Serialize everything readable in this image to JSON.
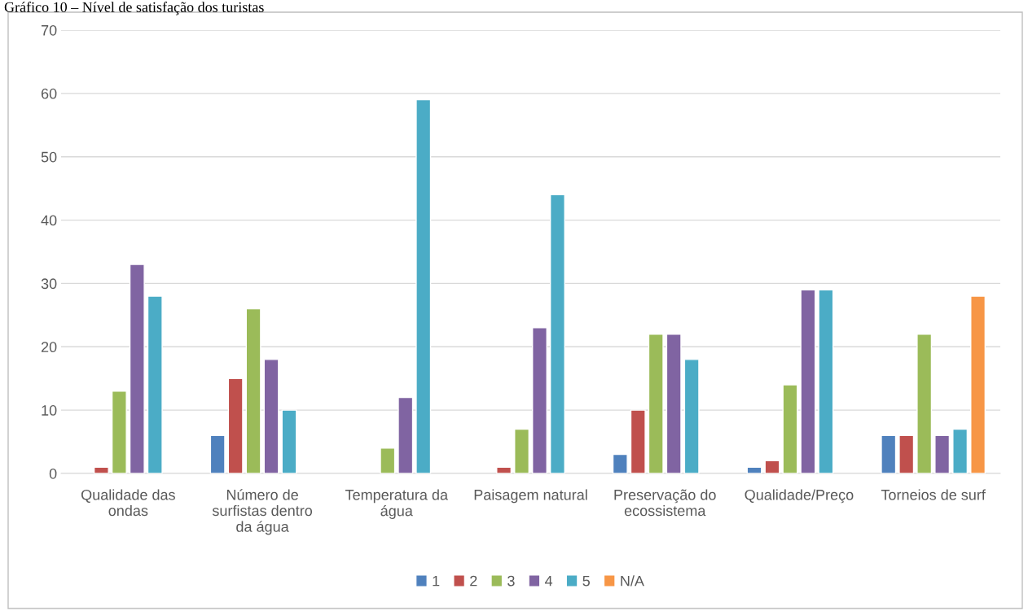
{
  "chart_data": {
    "type": "bar",
    "title": "Gráfico 10 – Nível de satisfação dos turistas",
    "categories": [
      "Qualidade das ondas",
      "Número de surfistas dentro da água",
      "Temperatura da água",
      "Paisagem natural",
      "Preservação do ecossistema",
      "Qualidade/Preço",
      "Torneios de surf"
    ],
    "series": [
      {
        "name": "1",
        "color": "#4f81bd",
        "values": [
          null,
          6,
          null,
          null,
          3,
          1,
          6
        ]
      },
      {
        "name": "2",
        "color": "#c0504d",
        "values": [
          1,
          15,
          null,
          1,
          10,
          2,
          6
        ]
      },
      {
        "name": "3",
        "color": "#9bbb59",
        "values": [
          13,
          26,
          4,
          7,
          22,
          14,
          22
        ]
      },
      {
        "name": "4",
        "color": "#8064a2",
        "values": [
          33,
          18,
          12,
          23,
          22,
          29,
          6
        ]
      },
      {
        "name": "5",
        "color": "#4bacc6",
        "values": [
          28,
          10,
          59,
          44,
          18,
          29,
          7
        ]
      },
      {
        "name": "N/A",
        "color": "#f79646",
        "values": [
          null,
          null,
          null,
          null,
          null,
          null,
          28
        ]
      }
    ],
    "ylim": [
      0,
      70
    ],
    "yticks": [
      0,
      10,
      20,
      30,
      40,
      50,
      60,
      70
    ],
    "grid": "y",
    "legend": "bottom"
  }
}
